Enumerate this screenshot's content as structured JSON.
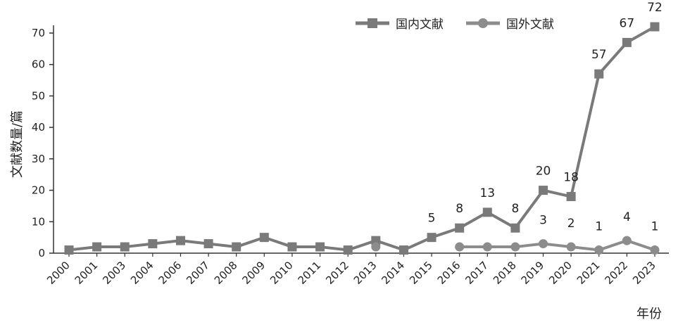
{
  "chart_data": {
    "type": "line",
    "title": "",
    "xlabel": "年份",
    "ylabel": "文献数量/篇",
    "ylim": [
      0,
      70
    ],
    "yticks": [
      0,
      10,
      20,
      30,
      40,
      50,
      60,
      70
    ],
    "grid": false,
    "legend_position": "top-right",
    "categories": [
      "2000",
      "2001",
      "2003",
      "2004",
      "2006",
      "2007",
      "2008",
      "2009",
      "2010",
      "2011",
      "2012",
      "2013",
      "2014",
      "2015",
      "2016",
      "2017",
      "2018",
      "2019",
      "2020",
      "2021",
      "2022",
      "2023"
    ],
    "series": [
      {
        "name": "国内文献",
        "marker": "square",
        "color": "#7a7a7a",
        "values": [
          1,
          2,
          2,
          3,
          4,
          3,
          2,
          5,
          2,
          2,
          1,
          4,
          1,
          5,
          8,
          13,
          8,
          20,
          18,
          57,
          67,
          72
        ],
        "data_labels": [
          "",
          "",
          "",
          "",
          "",
          "",
          "",
          "",
          "",
          "",
          "",
          "",
          "",
          "5",
          "8",
          "13",
          "8",
          "20",
          "18",
          "57",
          "67",
          "72"
        ]
      },
      {
        "name": "国外文献",
        "marker": "circle",
        "color": "#8c8c8c",
        "values": [
          null,
          null,
          null,
          null,
          null,
          null,
          null,
          null,
          null,
          null,
          null,
          2,
          null,
          null,
          2,
          2,
          2,
          3,
          2,
          1,
          4,
          1
        ],
        "data_labels": [
          "",
          "",
          "",
          "",
          "",
          "",
          "",
          "",
          "",
          "",
          "",
          "",
          "",
          "",
          "",
          "",
          "",
          "3",
          "2",
          "1",
          "4",
          "1"
        ]
      }
    ]
  }
}
